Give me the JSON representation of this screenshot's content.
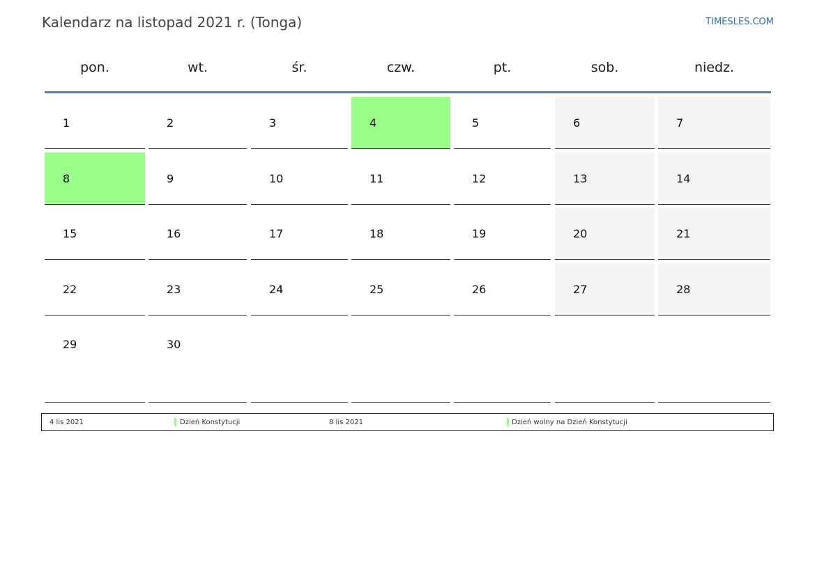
{
  "header": {
    "title": "Kalendarz na listopad 2021 r. (Tonga)",
    "brand": "TIMESLES.COM"
  },
  "colors": {
    "holiday": "#99ff88",
    "weekend": "#f4f4f4",
    "rule": "#5b7aa3",
    "brand": "#2e74b5"
  },
  "weekdays": [
    "pon.",
    "wt.",
    "śr.",
    "czw.",
    "pt.",
    "sob.",
    "niedz."
  ],
  "weeks": [
    [
      {
        "day": "1",
        "type": "normal"
      },
      {
        "day": "2",
        "type": "normal"
      },
      {
        "day": "3",
        "type": "normal"
      },
      {
        "day": "4",
        "type": "holiday"
      },
      {
        "day": "5",
        "type": "normal"
      },
      {
        "day": "6",
        "type": "weekend"
      },
      {
        "day": "7",
        "type": "weekend"
      }
    ],
    [
      {
        "day": "8",
        "type": "holiday"
      },
      {
        "day": "9",
        "type": "normal"
      },
      {
        "day": "10",
        "type": "normal"
      },
      {
        "day": "11",
        "type": "normal"
      },
      {
        "day": "12",
        "type": "normal"
      },
      {
        "day": "13",
        "type": "weekend"
      },
      {
        "day": "14",
        "type": "weekend"
      }
    ],
    [
      {
        "day": "15",
        "type": "normal"
      },
      {
        "day": "16",
        "type": "normal"
      },
      {
        "day": "17",
        "type": "normal"
      },
      {
        "day": "18",
        "type": "normal"
      },
      {
        "day": "19",
        "type": "normal"
      },
      {
        "day": "20",
        "type": "weekend"
      },
      {
        "day": "21",
        "type": "weekend"
      }
    ],
    [
      {
        "day": "22",
        "type": "normal"
      },
      {
        "day": "23",
        "type": "normal"
      },
      {
        "day": "24",
        "type": "normal"
      },
      {
        "day": "25",
        "type": "normal"
      },
      {
        "day": "26",
        "type": "normal"
      },
      {
        "day": "27",
        "type": "weekend"
      },
      {
        "day": "28",
        "type": "weekend"
      }
    ],
    [
      {
        "day": "29",
        "type": "normal"
      },
      {
        "day": "30",
        "type": "normal"
      },
      {
        "day": "",
        "type": "empty"
      },
      {
        "day": "",
        "type": "empty"
      },
      {
        "day": "",
        "type": "empty"
      },
      {
        "day": "",
        "type": "empty"
      },
      {
        "day": "",
        "type": "empty"
      }
    ]
  ],
  "legend": [
    {
      "date": "4 lis 2021",
      "name": "Dzień Konstytucji"
    },
    {
      "date": "8 lis 2021",
      "name": "Dzień wolny na Dzień Konstytucji"
    }
  ]
}
